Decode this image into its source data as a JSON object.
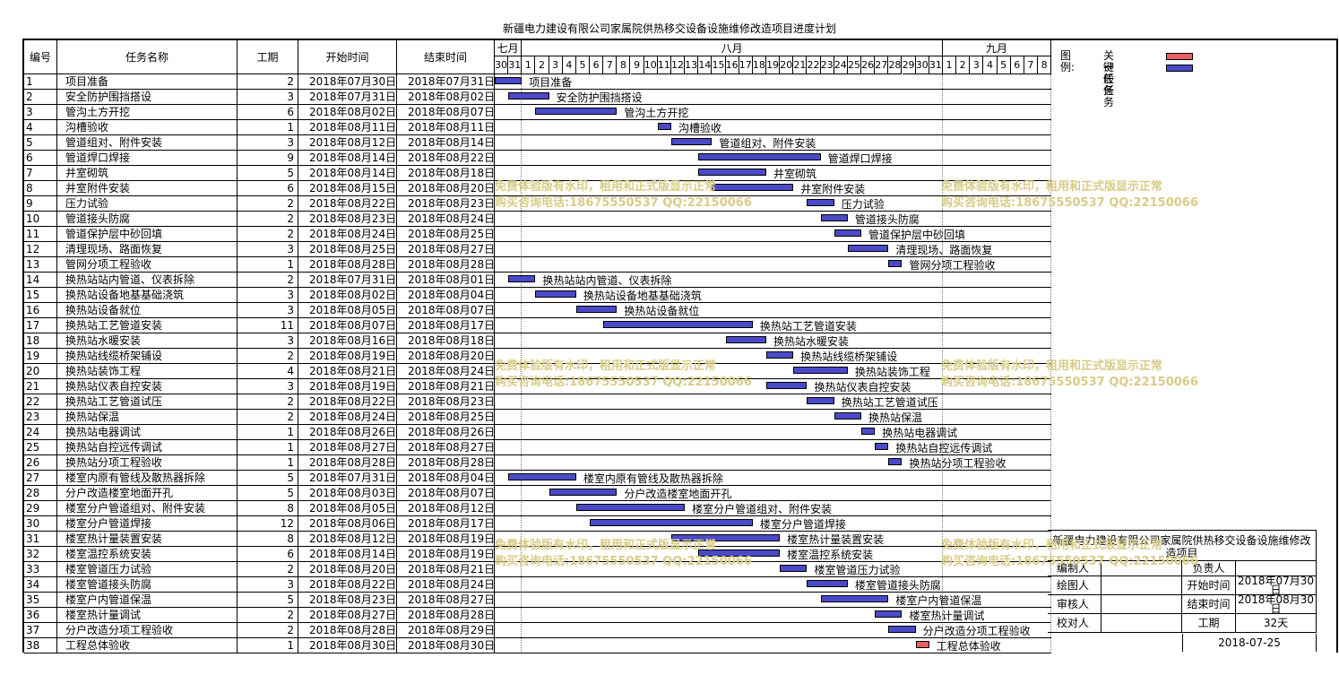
{
  "title": "新疆电力建设有限公司家属院供热移交设备设施维修改造项目进度计划",
  "headers": {
    "num": "编号",
    "name": "任务名称",
    "duration": "工期",
    "start": "开始时间",
    "end": "结束时间"
  },
  "months": [
    {
      "label": "七月",
      "days": [
        "30",
        "31"
      ]
    },
    {
      "label": "八月",
      "days": [
        "1",
        "2",
        "3",
        "4",
        "5",
        "6",
        "7",
        "8",
        "9",
        "10",
        "11",
        "12",
        "13",
        "14",
        "15",
        "16",
        "17",
        "18",
        "19",
        "20",
        "21",
        "22",
        "23",
        "24",
        "25",
        "26",
        "27",
        "28",
        "29",
        "30",
        "31"
      ]
    },
    {
      "label": "九月",
      "days": [
        "1",
        "2",
        "3",
        "4",
        "5",
        "6",
        "7",
        "8"
      ]
    }
  ],
  "legend": {
    "title": "图例:",
    "critical_label": "关键任务",
    "normal_label": "一般任务",
    "critical_color": "#e86060",
    "normal_color": "#4a4ac8"
  },
  "tasks": [
    {
      "num": "1",
      "name": "项目准备",
      "duration": "2",
      "start": "2018年07月30日",
      "end": "2018年07月31日",
      "s": 0,
      "d": 2,
      "type": "normal"
    },
    {
      "num": "2",
      "name": "安全防护围挡搭设",
      "duration": "3",
      "start": "2018年07月31日",
      "end": "2018年08月02日",
      "s": 1,
      "d": 3,
      "type": "normal"
    },
    {
      "num": "3",
      "name": "管沟土方开挖",
      "duration": "6",
      "start": "2018年08月02日",
      "end": "2018年08月07日",
      "s": 3,
      "d": 6,
      "type": "normal"
    },
    {
      "num": "4",
      "name": "沟槽验收",
      "duration": "1",
      "start": "2018年08月11日",
      "end": "2018年08月11日",
      "s": 12,
      "d": 1,
      "type": "normal"
    },
    {
      "num": "5",
      "name": "管道组对、附件安装",
      "duration": "3",
      "start": "2018年08月12日",
      "end": "2018年08月14日",
      "s": 13,
      "d": 3,
      "type": "normal"
    },
    {
      "num": "6",
      "name": "管道焊口焊接",
      "duration": "9",
      "start": "2018年08月14日",
      "end": "2018年08月22日",
      "s": 15,
      "d": 9,
      "type": "normal"
    },
    {
      "num": "7",
      "name": "井室砌筑",
      "duration": "5",
      "start": "2018年08月14日",
      "end": "2018年08月18日",
      "s": 15,
      "d": 5,
      "type": "normal"
    },
    {
      "num": "8",
      "name": "井室附件安装",
      "duration": "6",
      "start": "2018年08月15日",
      "end": "2018年08月20日",
      "s": 16,
      "d": 6,
      "type": "normal"
    },
    {
      "num": "9",
      "name": "压力试验",
      "duration": "2",
      "start": "2018年08月22日",
      "end": "2018年08月23日",
      "s": 23,
      "d": 2,
      "type": "normal"
    },
    {
      "num": "10",
      "name": "管道接头防腐",
      "duration": "2",
      "start": "2018年08月23日",
      "end": "2018年08月24日",
      "s": 24,
      "d": 2,
      "type": "normal"
    },
    {
      "num": "11",
      "name": "管道保护层中砂回填",
      "duration": "2",
      "start": "2018年08月24日",
      "end": "2018年08月25日",
      "s": 25,
      "d": 2,
      "type": "normal"
    },
    {
      "num": "12",
      "name": "清理现场、路面恢复",
      "duration": "3",
      "start": "2018年08月25日",
      "end": "2018年08月27日",
      "s": 26,
      "d": 3,
      "type": "normal"
    },
    {
      "num": "13",
      "name": "管网分项工程验收",
      "duration": "1",
      "start": "2018年08月28日",
      "end": "2018年08月28日",
      "s": 29,
      "d": 1,
      "type": "normal"
    },
    {
      "num": "14",
      "name": "换热站站内管道、仪表拆除",
      "duration": "2",
      "start": "2018年07月31日",
      "end": "2018年08月01日",
      "s": 1,
      "d": 2,
      "type": "normal"
    },
    {
      "num": "15",
      "name": "换热站设备地基基础浇筑",
      "duration": "3",
      "start": "2018年08月02日",
      "end": "2018年08月04日",
      "s": 3,
      "d": 3,
      "type": "normal"
    },
    {
      "num": "16",
      "name": "换热站设备就位",
      "duration": "3",
      "start": "2018年08月05日",
      "end": "2018年08月07日",
      "s": 6,
      "d": 3,
      "type": "normal"
    },
    {
      "num": "17",
      "name": "换热站工艺管道安装",
      "duration": "11",
      "start": "2018年08月07日",
      "end": "2018年08月17日",
      "s": 8,
      "d": 11,
      "type": "normal"
    },
    {
      "num": "18",
      "name": "换热站水暖安装",
      "duration": "3",
      "start": "2018年08月16日",
      "end": "2018年08月18日",
      "s": 17,
      "d": 3,
      "type": "normal"
    },
    {
      "num": "19",
      "name": "换热站线缆桥架铺设",
      "duration": "2",
      "start": "2018年08月19日",
      "end": "2018年08月20日",
      "s": 20,
      "d": 2,
      "type": "normal"
    },
    {
      "num": "20",
      "name": "换热站装饰工程",
      "duration": "4",
      "start": "2018年08月21日",
      "end": "2018年08月24日",
      "s": 22,
      "d": 4,
      "type": "normal"
    },
    {
      "num": "21",
      "name": "换热站仪表自控安装",
      "duration": "3",
      "start": "2018年08月19日",
      "end": "2018年08月21日",
      "s": 20,
      "d": 3,
      "type": "normal"
    },
    {
      "num": "22",
      "name": "换热站工艺管道试压",
      "duration": "2",
      "start": "2018年08月22日",
      "end": "2018年08月23日",
      "s": 23,
      "d": 2,
      "type": "normal"
    },
    {
      "num": "23",
      "name": "换热站保温",
      "duration": "2",
      "start": "2018年08月24日",
      "end": "2018年08月25日",
      "s": 25,
      "d": 2,
      "type": "normal"
    },
    {
      "num": "24",
      "name": "换热站电器调试",
      "duration": "1",
      "start": "2018年08月26日",
      "end": "2018年08月26日",
      "s": 27,
      "d": 1,
      "type": "normal"
    },
    {
      "num": "25",
      "name": "换热站自控远传调试",
      "duration": "1",
      "start": "2018年08月27日",
      "end": "2018年08月27日",
      "s": 28,
      "d": 1,
      "type": "normal"
    },
    {
      "num": "26",
      "name": "换热站分项工程验收",
      "duration": "1",
      "start": "2018年08月28日",
      "end": "2018年08月28日",
      "s": 29,
      "d": 1,
      "type": "normal"
    },
    {
      "num": "27",
      "name": "楼室内原有管线及散热器拆除",
      "duration": "5",
      "start": "2018年07月31日",
      "end": "2018年08月04日",
      "s": 1,
      "d": 5,
      "type": "normal"
    },
    {
      "num": "28",
      "name": "分户改造楼室地面开孔",
      "duration": "5",
      "start": "2018年08月03日",
      "end": "2018年08月07日",
      "s": 4,
      "d": 5,
      "type": "normal"
    },
    {
      "num": "29",
      "name": "楼室分户管道组对、附件安装",
      "duration": "8",
      "start": "2018年08月05日",
      "end": "2018年08月12日",
      "s": 6,
      "d": 8,
      "type": "normal"
    },
    {
      "num": "30",
      "name": "楼室分户管道焊接",
      "duration": "12",
      "start": "2018年08月06日",
      "end": "2018年08月17日",
      "s": 7,
      "d": 12,
      "type": "normal"
    },
    {
      "num": "31",
      "name": "楼室热计量装置安装",
      "duration": "8",
      "start": "2018年08月12日",
      "end": "2018年08月19日",
      "s": 13,
      "d": 8,
      "type": "normal"
    },
    {
      "num": "32",
      "name": "楼室温控系统安装",
      "duration": "6",
      "start": "2018年08月14日",
      "end": "2018年08月19日",
      "s": 15,
      "d": 6,
      "type": "normal"
    },
    {
      "num": "33",
      "name": "楼室管道压力试验",
      "duration": "2",
      "start": "2018年08月20日",
      "end": "2018年08月21日",
      "s": 21,
      "d": 2,
      "type": "normal"
    },
    {
      "num": "34",
      "name": "楼室管道接头防腐",
      "duration": "3",
      "start": "2018年08月22日",
      "end": "2018年08月24日",
      "s": 23,
      "d": 3,
      "type": "normal"
    },
    {
      "num": "35",
      "name": "楼室户内管道保温",
      "duration": "5",
      "start": "2018年08月23日",
      "end": "2018年08月27日",
      "s": 24,
      "d": 5,
      "type": "normal"
    },
    {
      "num": "36",
      "name": "楼室热计量调试",
      "duration": "2",
      "start": "2018年08月27日",
      "end": "2018年08月28日",
      "s": 28,
      "d": 2,
      "type": "normal"
    },
    {
      "num": "37",
      "name": "分户改造分项工程验收",
      "duration": "2",
      "start": "2018年08月28日",
      "end": "2018年08月29日",
      "s": 29,
      "d": 2,
      "type": "normal"
    },
    {
      "num": "38",
      "name": "工程总体验收",
      "duration": "1",
      "start": "2018年08月30日",
      "end": "2018年08月30日",
      "s": 31,
      "d": 1,
      "type": "critical"
    }
  ],
  "watermarks": [
    {
      "line1": "免费体验版有水印，租用和正式版显示正常",
      "line2": "购买咨询电话:18675550537 QQ:22150066",
      "pos": "a"
    },
    {
      "line1": "免费体验版有水印，租用和正式版显示正常",
      "line2": "购买咨询电话:18675550537 QQ:22150066",
      "pos": "b"
    },
    {
      "line1": "免费体验版有水印，租用和正式版显示正常",
      "line2": "购买咨询电话:18675550537 QQ:22150066",
      "pos": "c"
    },
    {
      "line1": "免费体验版有水印，租用和正式版显示正常",
      "line2": "购买咨询电话:18675550537 QQ:22150066",
      "pos": "d"
    },
    {
      "line1": "免费体验版有水印，租用和正式版显示正常",
      "line2": "购买咨询电话:18675550537 QQ:22150066",
      "pos": "e"
    },
    {
      "line1": "免费体验版有水印，租用和正式版显示正常",
      "line2": "购买咨询电话:18675550537 QQ:22150066",
      "pos": "f"
    }
  ],
  "info": {
    "project": "新疆电力建设有限公司家属院供热移交设备设施维修改造项目",
    "compiler_label": "编制人",
    "responsible_label": "负责人",
    "drawer_label": "绘图人",
    "start_label": "开始时间",
    "start_value": "2018年07月30日",
    "reviewer_label": "审核人",
    "end_label": "结束时间",
    "end_value": "2018年08月30日",
    "checker_label": "校对人",
    "duration_label": "工期",
    "duration_value": "32天",
    "date": "2018-07-25"
  }
}
